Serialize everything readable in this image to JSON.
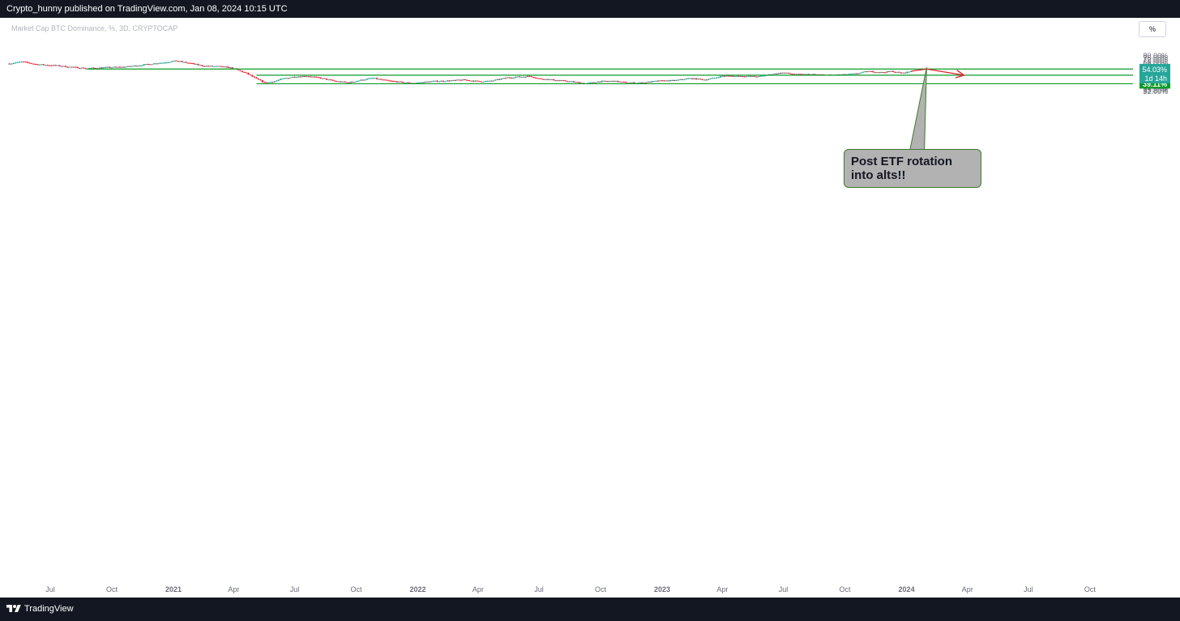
{
  "header": {
    "published": "Crypto_hunny published on TradingView.com, Jan 08, 2024 10:15 UTC"
  },
  "footer": {
    "brand": "TradingView"
  },
  "symbol_label": "Market Cap BTC Dominance, %, 3D, CRYPTOCAP",
  "scale_button": "%",
  "annotation": {
    "text": "Post ETF rotation into alts!!"
  },
  "colors": {
    "up": "#26a69a",
    "down": "#ef2233",
    "level_line": "#0a9b2a",
    "arrow": "#e0202b"
  },
  "chart_data": {
    "type": "candlestick",
    "y_axis_ticks": [
      "80.00%",
      "76.00%",
      "72.00%",
      "68.00%",
      "64.00%",
      "60.00%",
      "56.00%",
      "52.00%",
      "50.00%",
      "48.00%",
      "46.00%",
      "44.00%",
      "42.00%",
      "40.50%",
      "37.50%",
      "36.00%",
      "34.60%",
      "33.20%",
      "32.00%"
    ],
    "y_axis_tick_values": [
      80,
      76,
      72,
      68,
      64,
      60,
      56,
      52,
      50,
      48,
      46,
      44,
      42,
      40.5,
      37.5,
      36,
      34.6,
      33.2,
      32
    ],
    "y_scale": "log",
    "x_axis_ticks": [
      "Jul",
      "Oct",
      "2021",
      "Apr",
      "Jul",
      "Oct",
      "2022",
      "Apr",
      "Jul",
      "Oct",
      "2023",
      "Apr",
      "Jul",
      "Oct",
      "2024",
      "Apr",
      "Jul",
      "Oct"
    ],
    "x_axis_tick_dates": [
      "2020-07-01",
      "2020-10-01",
      "2021-01-01",
      "2021-04-01",
      "2021-07-01",
      "2021-10-01",
      "2022-01-01",
      "2022-04-01",
      "2022-07-01",
      "2022-10-01",
      "2023-01-01",
      "2023-04-01",
      "2023-07-01",
      "2023-10-01",
      "2024-01-01",
      "2024-04-01",
      "2024-07-01",
      "2024-10-01"
    ],
    "horizontal_levels": [
      {
        "value": 57.06,
        "label": "57.06%",
        "start": "2020-08-25"
      },
      {
        "value": 48.67,
        "label": "48.67%",
        "start": "2021-05-05"
      },
      {
        "value": 39.11,
        "label": "39.11%",
        "start": "2021-05-05"
      }
    ],
    "last_price": {
      "value": 54.03,
      "label": "54.03%",
      "countdown": "1d 14h"
    },
    "price_path": [
      [
        "2020-05-01",
        65.5
      ],
      [
        "2020-05-20",
        68.8
      ],
      [
        "2020-06-10",
        64.3
      ],
      [
        "2020-07-10",
        62.4
      ],
      [
        "2020-08-01",
        60.0
      ],
      [
        "2020-08-25",
        58.0
      ],
      [
        "2020-09-20",
        59.3
      ],
      [
        "2020-10-20",
        60.2
      ],
      [
        "2020-11-20",
        63.9
      ],
      [
        "2020-12-20",
        67.9
      ],
      [
        "2021-01-05",
        70.4
      ],
      [
        "2021-01-25",
        66.2
      ],
      [
        "2021-02-15",
        61.7
      ],
      [
        "2021-03-10",
        61.0
      ],
      [
        "2021-03-28",
        58.8
      ],
      [
        "2021-04-18",
        51.9
      ],
      [
        "2021-05-05",
        44.2
      ],
      [
        "2021-05-18",
        40.0
      ],
      [
        "2021-06-01",
        41.6
      ],
      [
        "2021-06-15",
        44.8
      ],
      [
        "2021-07-01",
        46.9
      ],
      [
        "2021-07-20",
        47.7
      ],
      [
        "2021-08-10",
        45.0
      ],
      [
        "2021-09-01",
        41.5
      ],
      [
        "2021-09-20",
        40.3
      ],
      [
        "2021-10-10",
        43.2
      ],
      [
        "2021-10-25",
        45.3
      ],
      [
        "2021-11-15",
        42.4
      ],
      [
        "2021-12-10",
        40.4
      ],
      [
        "2021-12-28",
        39.8
      ],
      [
        "2022-01-20",
        41.5
      ],
      [
        "2022-02-15",
        42.2
      ],
      [
        "2022-03-10",
        43.2
      ],
      [
        "2022-04-01",
        41.6
      ],
      [
        "2022-04-20",
        41.9
      ],
      [
        "2022-05-15",
        45.8
      ],
      [
        "2022-06-18",
        47.5
      ],
      [
        "2022-07-01",
        44.5
      ],
      [
        "2022-07-25",
        43.0
      ],
      [
        "2022-08-20",
        41.1
      ],
      [
        "2022-09-10",
        39.3
      ],
      [
        "2022-09-28",
        41.4
      ],
      [
        "2022-10-20",
        41.9
      ],
      [
        "2022-11-10",
        40.1
      ],
      [
        "2022-12-01",
        40.0
      ],
      [
        "2022-12-25",
        42.0
      ],
      [
        "2023-01-20",
        42.5
      ],
      [
        "2023-02-10",
        44.9
      ],
      [
        "2023-03-05",
        43.5
      ],
      [
        "2023-03-15",
        44.6
      ],
      [
        "2023-04-01",
        47.8
      ],
      [
        "2023-05-01",
        47.5
      ],
      [
        "2023-05-25",
        47.0
      ],
      [
        "2023-06-15",
        50.3
      ],
      [
        "2023-07-01",
        51.9
      ],
      [
        "2023-07-20",
        49.6
      ],
      [
        "2023-08-10",
        49.8
      ],
      [
        "2023-09-05",
        48.9
      ],
      [
        "2023-09-28",
        49.4
      ],
      [
        "2023-10-15",
        50.3
      ],
      [
        "2023-11-05",
        53.9
      ],
      [
        "2023-11-25",
        52.2
      ],
      [
        "2023-12-10",
        53.9
      ],
      [
        "2023-12-25",
        51.1
      ],
      [
        "2024-01-08",
        54.03
      ]
    ],
    "projection_arrow": [
      [
        "2024-01-08",
        54.03
      ],
      [
        "2024-01-31",
        57.06
      ],
      [
        "2024-03-27",
        48.67
      ]
    ]
  }
}
